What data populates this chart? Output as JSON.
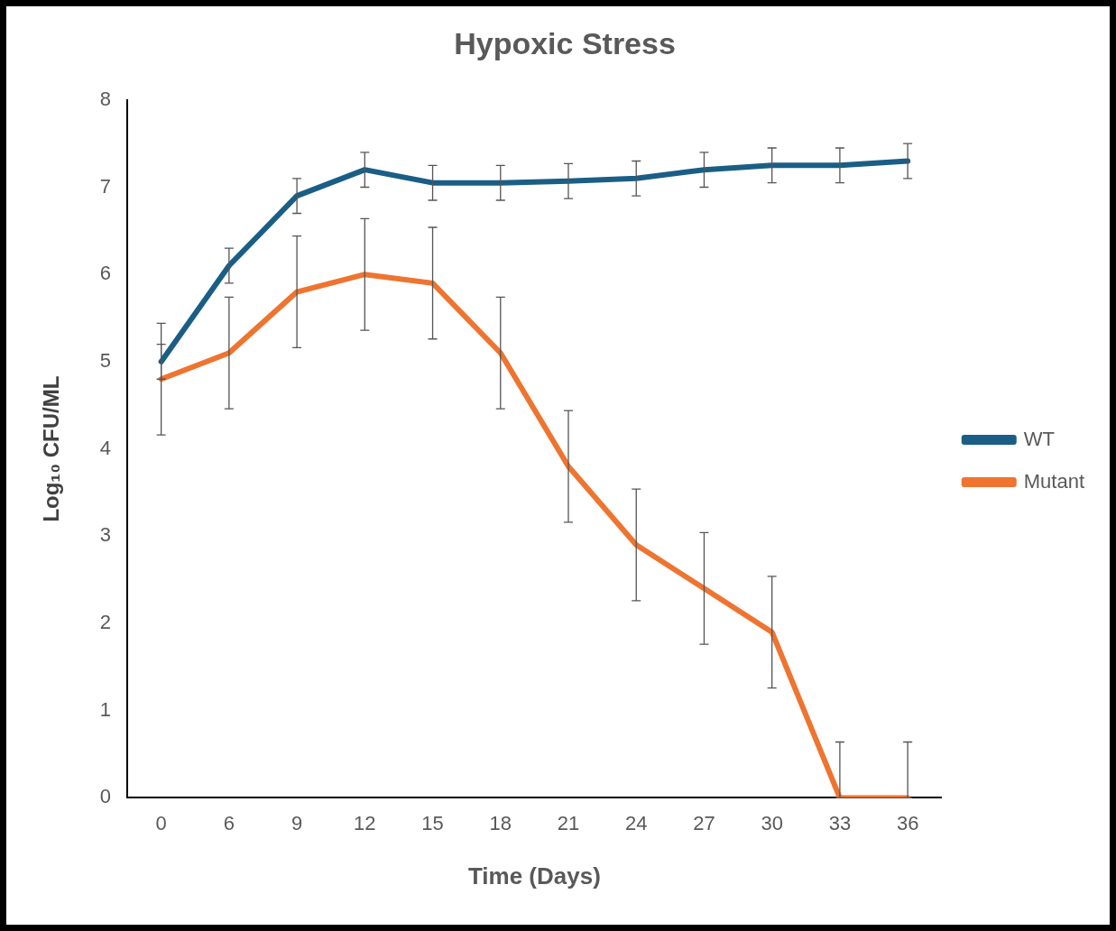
{
  "chart_data": {
    "type": "line",
    "title": "Hypoxic Stress",
    "xlabel": "Time (Days)",
    "ylabel": "Log₁₀ CFU/ML",
    "categories": [
      "0",
      "6",
      "9",
      "12",
      "15",
      "18",
      "21",
      "24",
      "27",
      "30",
      "33",
      "36"
    ],
    "series": [
      {
        "name": "WT",
        "color": "#1a5e85",
        "values": [
          5.0,
          6.1,
          6.9,
          7.2,
          7.05,
          7.05,
          7.07,
          7.1,
          7.2,
          7.25,
          7.25,
          7.3
        ],
        "errors": [
          0.2,
          0.2,
          0.2,
          0.2,
          0.2,
          0.2,
          0.2,
          0.2,
          0.2,
          0.2,
          0.2,
          0.2
        ]
      },
      {
        "name": "Mutant",
        "color": "#ee7430",
        "values": [
          4.8,
          5.1,
          5.8,
          6.0,
          5.9,
          5.1,
          3.8,
          2.9,
          2.4,
          1.9,
          0,
          0
        ],
        "errors": [
          0.64,
          0.64,
          0.64,
          0.64,
          0.64,
          0.64,
          0.64,
          0.64,
          0.64,
          0.64,
          [
            0,
            0.64
          ],
          [
            0,
            0.64
          ]
        ]
      }
    ],
    "ylim": [
      0,
      8
    ],
    "yticks": [
      0,
      1,
      2,
      3,
      4,
      5,
      6,
      7,
      8
    ],
    "grid": false,
    "legend": "right",
    "marker": "none",
    "line_style": "solid"
  }
}
